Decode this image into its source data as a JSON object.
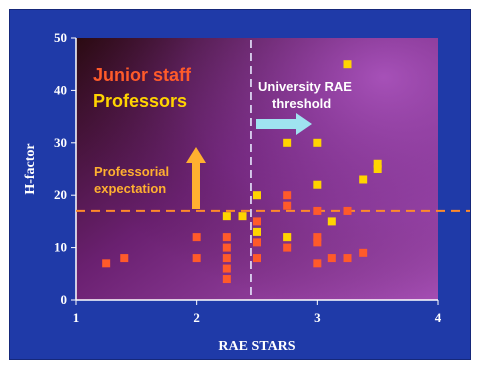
{
  "chart_data": {
    "type": "scatter",
    "xlabel": "RAE STARS",
    "ylabel": "H-factor",
    "xlim": [
      1,
      4
    ],
    "ylim": [
      0,
      50
    ],
    "xticks": [
      1,
      2,
      3,
      4
    ],
    "yticks": [
      0,
      10,
      20,
      30,
      40,
      50
    ],
    "grid": false,
    "legend": "top-left",
    "series": [
      {
        "name": "Junior staff",
        "color": "#ff5a2a",
        "points": [
          {
            "x": 1.25,
            "y": 7
          },
          {
            "x": 1.4,
            "y": 8
          },
          {
            "x": 2.0,
            "y": 8
          },
          {
            "x": 2.0,
            "y": 12
          },
          {
            "x": 2.25,
            "y": 4
          },
          {
            "x": 2.25,
            "y": 6
          },
          {
            "x": 2.25,
            "y": 8
          },
          {
            "x": 2.25,
            "y": 10
          },
          {
            "x": 2.25,
            "y": 12
          },
          {
            "x": 2.5,
            "y": 8
          },
          {
            "x": 2.5,
            "y": 11
          },
          {
            "x": 2.5,
            "y": 15
          },
          {
            "x": 2.75,
            "y": 10
          },
          {
            "x": 2.75,
            "y": 12
          },
          {
            "x": 2.75,
            "y": 18
          },
          {
            "x": 2.75,
            "y": 20
          },
          {
            "x": 3.0,
            "y": 7
          },
          {
            "x": 3.0,
            "y": 11
          },
          {
            "x": 3.0,
            "y": 12
          },
          {
            "x": 3.0,
            "y": 17
          },
          {
            "x": 3.12,
            "y": 8
          },
          {
            "x": 3.25,
            "y": 8
          },
          {
            "x": 3.25,
            "y": 17
          },
          {
            "x": 3.38,
            "y": 9
          }
        ]
      },
      {
        "name": "Professors",
        "color": "#ffd400",
        "points": [
          {
            "x": 2.25,
            "y": 16
          },
          {
            "x": 2.38,
            "y": 16
          },
          {
            "x": 2.5,
            "y": 13
          },
          {
            "x": 2.5,
            "y": 20
          },
          {
            "x": 2.75,
            "y": 12
          },
          {
            "x": 2.75,
            "y": 30
          },
          {
            "x": 3.0,
            "y": 22
          },
          {
            "x": 3.0,
            "y": 30
          },
          {
            "x": 3.12,
            "y": 15
          },
          {
            "x": 3.25,
            "y": 45
          },
          {
            "x": 3.38,
            "y": 23
          },
          {
            "x": 3.5,
            "y": 25
          },
          {
            "x": 3.5,
            "y": 26
          }
        ]
      }
    ],
    "reference_lines": [
      {
        "orientation": "horizontal",
        "value": 17,
        "color": "#ff8a2a",
        "style": "dashed"
      },
      {
        "orientation": "vertical",
        "value": 2.45,
        "color": "#e8e8ff",
        "style": "dashed"
      }
    ],
    "annotations": [
      {
        "text_lines": [
          "University RAE",
          "threshold"
        ],
        "color": "#ffffff",
        "arrow": "right",
        "arrow_color": "#9fe3f0"
      },
      {
        "text_lines": [
          "Professorial",
          "expectation"
        ],
        "color": "#ffb030",
        "arrow": "up",
        "arrow_color": "#ffb030"
      }
    ]
  }
}
